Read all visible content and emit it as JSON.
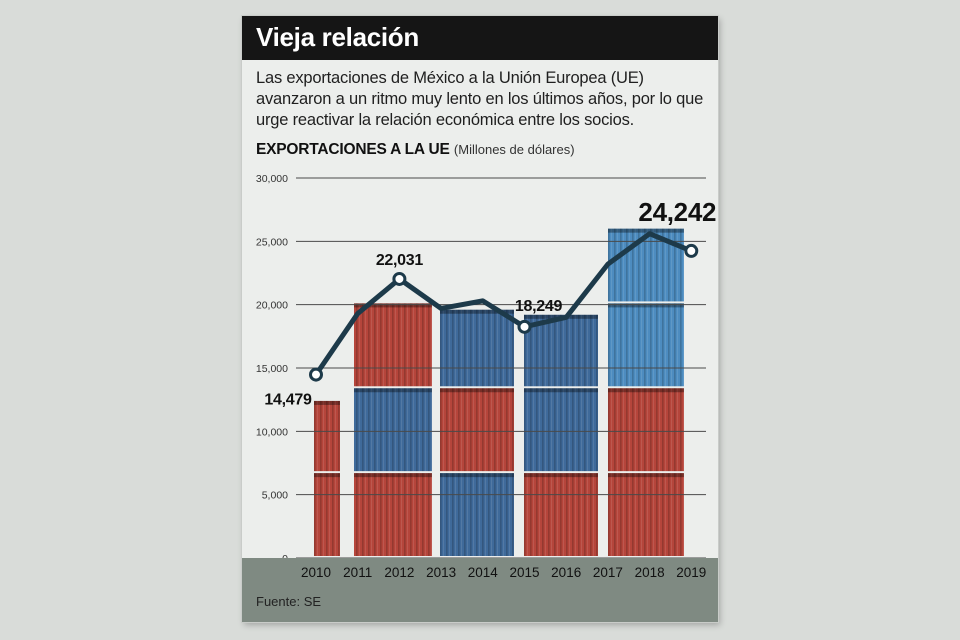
{
  "header": {
    "title": "Vieja relación"
  },
  "lead": "Las exportaciones de México a la Unión Europea (UE) avanzaron a un ritmo muy lento en los últimos años, por lo que urge reactivar la relación económica entre los socios.",
  "subtitle": {
    "main": "EXPORTACIONES A LA UE",
    "unit": "(Millones de dólares)"
  },
  "source": "Fuente: SE",
  "colors": {
    "line": "#1d3a4a",
    "container_red": "#b5453b",
    "container_blue": "#3f6a9a",
    "container_lightblue": "#4d8cc0",
    "axis_band": "#7f8a82"
  },
  "chart_data": {
    "type": "line",
    "title": "EXPORTACIONES A LA UE",
    "ylabel": "Millones de dólares",
    "x": [
      "2010",
      "2011",
      "2012",
      "2013",
      "2014",
      "2015",
      "2016",
      "2017",
      "2018",
      "2019"
    ],
    "values": [
      14479,
      19300,
      22031,
      19700,
      20300,
      18249,
      19000,
      23200,
      25600,
      24242
    ],
    "ylim": [
      0,
      30000
    ],
    "yticks": [
      "0",
      "5,000",
      "10,000",
      "15,000",
      "20,000",
      "25,000",
      "30,000"
    ],
    "grid": true,
    "labels": [
      {
        "index": 0,
        "text": "14,479"
      },
      {
        "index": 2,
        "text": "22,031"
      },
      {
        "index": 5,
        "text": "18,249"
      },
      {
        "index": 9,
        "text": "24,242"
      }
    ]
  }
}
